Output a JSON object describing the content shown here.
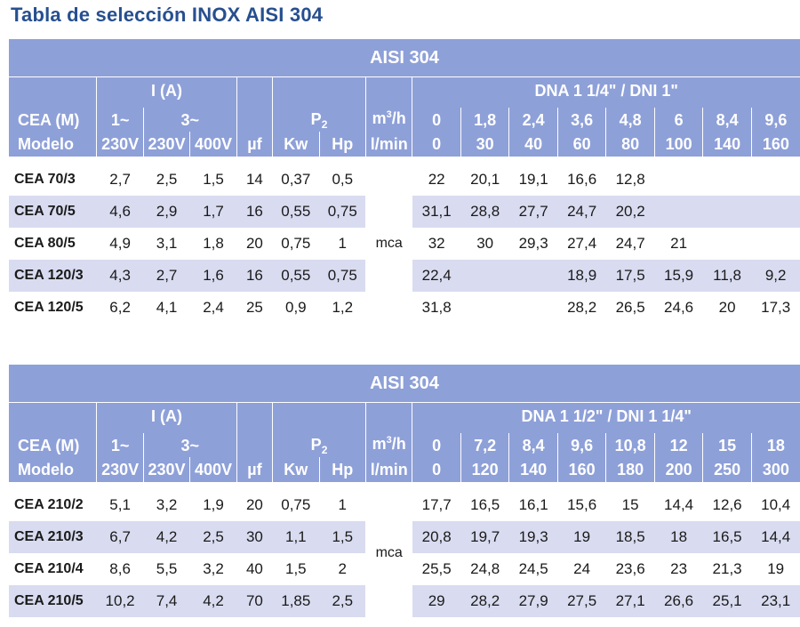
{
  "title": "Tabla de selección INOX AISI 304",
  "labels": {
    "aisi": "AISI 304",
    "i": "I (A)",
    "cea_m": "CEA (M)",
    "modelo": "Modelo",
    "phase1": "1~",
    "phase3": "3~",
    "v230": "230V",
    "v400": "400V",
    "uf": "µf",
    "p": "P",
    "p_sub": "2",
    "kw": "Kw",
    "hp": "Hp",
    "m3h_a": "m",
    "m3h_sup": "3",
    "m3h_b": "/h",
    "lmin": "l/min",
    "mca": "mca"
  },
  "table1": {
    "dna": "DNA 1 1/4\" / DNI 1\"",
    "m3h": [
      "0",
      "1,8",
      "2,4",
      "3,6",
      "4,8",
      "6",
      "8,4",
      "9,6"
    ],
    "lmin": [
      "0",
      "30",
      "40",
      "60",
      "80",
      "100",
      "140",
      "160"
    ],
    "rows": [
      {
        "model": "CEA 70/3",
        "i1": "2,7",
        "i3a": "2,5",
        "i3b": "1,5",
        "uf": "14",
        "kw": "0,37",
        "hp": "0,5",
        "h": [
          "22",
          "20,1",
          "19,1",
          "16,6",
          "12,8",
          "",
          "",
          ""
        ]
      },
      {
        "model": "CEA 70/5",
        "i1": "4,6",
        "i3a": "2,9",
        "i3b": "1,7",
        "uf": "16",
        "kw": "0,55",
        "hp": "0,75",
        "h": [
          "31,1",
          "28,8",
          "27,7",
          "24,7",
          "20,2",
          "",
          "",
          ""
        ]
      },
      {
        "model": "CEA 80/5",
        "i1": "4,9",
        "i3a": "3,1",
        "i3b": "1,8",
        "uf": "20",
        "kw": "0,75",
        "hp": "1",
        "h": [
          "32",
          "30",
          "29,3",
          "27,4",
          "24,7",
          "21",
          "",
          ""
        ]
      },
      {
        "model": "CEA 120/3",
        "i1": "4,3",
        "i3a": "2,7",
        "i3b": "1,6",
        "uf": "16",
        "kw": "0,55",
        "hp": "0,75",
        "h": [
          "22,4",
          "",
          "",
          "18,9",
          "17,5",
          "15,9",
          "11,8",
          "9,2"
        ]
      },
      {
        "model": "CEA 120/5",
        "i1": "6,2",
        "i3a": "4,1",
        "i3b": "2,4",
        "uf": "25",
        "kw": "0,9",
        "hp": "1,2",
        "h": [
          "31,8",
          "",
          "",
          "28,2",
          "26,5",
          "24,6",
          "20",
          "17,3"
        ]
      }
    ]
  },
  "table2": {
    "dna": "DNA 1 1/2\" / DNI 1 1/4\"",
    "m3h": [
      "0",
      "7,2",
      "8,4",
      "9,6",
      "10,8",
      "12",
      "15",
      "18"
    ],
    "lmin": [
      "0",
      "120",
      "140",
      "160",
      "180",
      "200",
      "250",
      "300"
    ],
    "rows": [
      {
        "model": "CEA 210/2",
        "i1": "5,1",
        "i3a": "3,2",
        "i3b": "1,9",
        "uf": "20",
        "kw": "0,75",
        "hp": "1",
        "h": [
          "17,7",
          "16,5",
          "16,1",
          "15,6",
          "15",
          "14,4",
          "12,6",
          "10,4"
        ]
      },
      {
        "model": "CEA 210/3",
        "i1": "6,7",
        "i3a": "4,2",
        "i3b": "2,5",
        "uf": "30",
        "kw": "1,1",
        "hp": "1,5",
        "h": [
          "20,8",
          "19,7",
          "19,3",
          "19",
          "18,5",
          "18",
          "16,5",
          "14,4"
        ]
      },
      {
        "model": "CEA 210/4",
        "i1": "8,6",
        "i3a": "5,5",
        "i3b": "3,2",
        "uf": "40",
        "kw": "1,5",
        "hp": "2",
        "h": [
          "25,5",
          "24,8",
          "24,5",
          "24",
          "23,6",
          "23",
          "21,3",
          "19"
        ]
      },
      {
        "model": "CEA 210/5",
        "i1": "10,2",
        "i3a": "7,4",
        "i3b": "4,2",
        "uf": "70",
        "kw": "1,85",
        "hp": "2,5",
        "h": [
          "29",
          "28,2",
          "27,9",
          "27,5",
          "27,1",
          "26,6",
          "25,1",
          "23,1"
        ]
      }
    ]
  }
}
